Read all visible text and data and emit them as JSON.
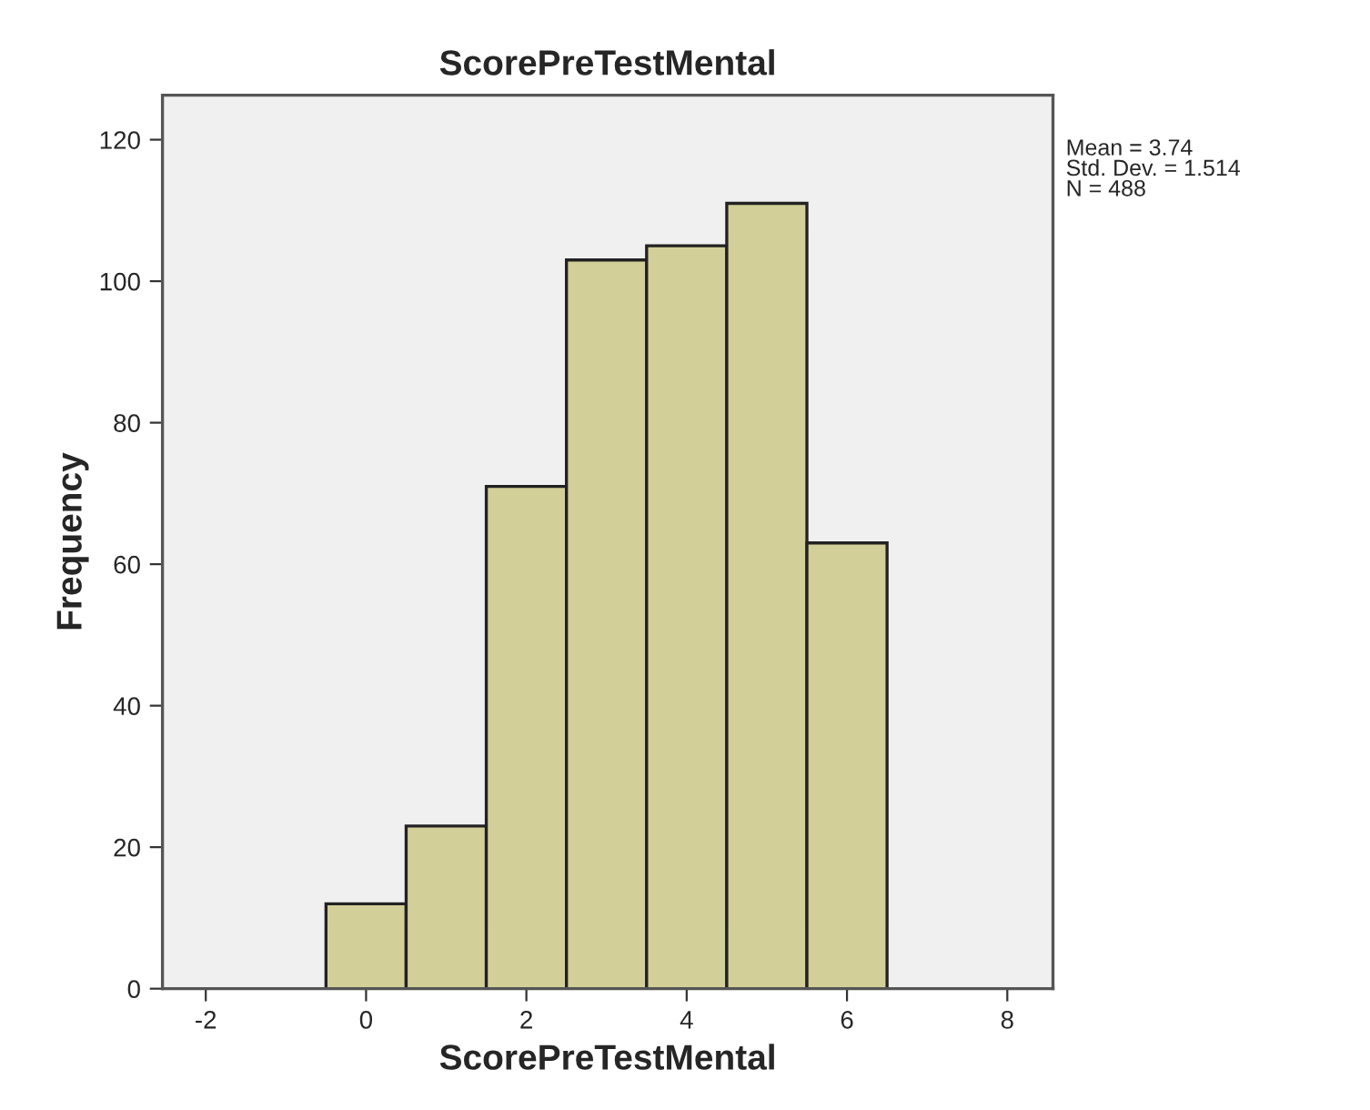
{
  "chart_data": {
    "type": "histogram",
    "title": "ScorePreTestMental",
    "xlabel": "ScorePreTestMental",
    "ylabel": "Frequency",
    "bins": [
      -0.5,
      0.5,
      1.5,
      2.5,
      3.5,
      4.5,
      5.5,
      6.5
    ],
    "values": [
      12,
      23,
      71,
      103,
      105,
      111,
      63
    ],
    "color": "#d3cf98",
    "xlim": [
      -2.54,
      8.57
    ],
    "xticks": [
      -2,
      0,
      2,
      4,
      6,
      8
    ],
    "ylim": [
      0,
      126.3
    ],
    "yticks": [
      0,
      20,
      40,
      60,
      80,
      100,
      120
    ],
    "grid": false,
    "annotations": [
      "Mean = 3.74\nStd. Dev. = 1.514\nN = 488"
    ]
  }
}
